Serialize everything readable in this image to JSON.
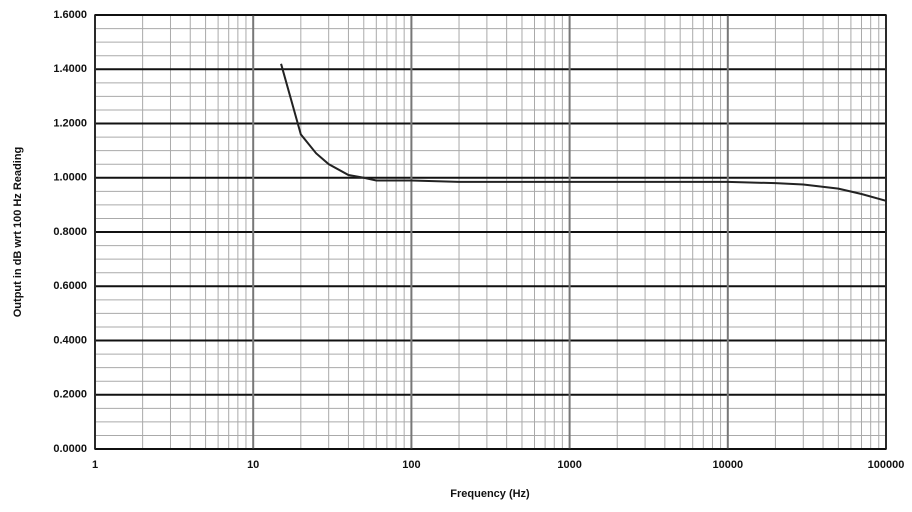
{
  "chart_data": {
    "type": "line",
    "x_label": "Frequency (Hz)",
    "y_label": "Output in dB wrt 100 Hz Reading",
    "x_log": true,
    "grid": true,
    "xlim": [
      1,
      100000
    ],
    "xticks": [
      1,
      10,
      100,
      1000,
      10000,
      100000
    ],
    "ylim": [
      0,
      1.6
    ],
    "yticks": [
      {
        "value": 0,
        "label": "0.0000"
      },
      {
        "value": 0.2,
        "label": "0.2000"
      },
      {
        "value": 0.4,
        "label": "0.4000"
      },
      {
        "value": 0.6,
        "label": "0.6000"
      },
      {
        "value": 0.8,
        "label": "0.8000"
      },
      {
        "value": 1.0,
        "label": "1.0000"
      },
      {
        "value": 1.2,
        "label": "1.2000"
      },
      {
        "value": 1.4,
        "label": "1.4000"
      },
      {
        "value": 1.6,
        "label": "1.6000"
      }
    ],
    "x": [
      15,
      20,
      25,
      30,
      40,
      50,
      60,
      70,
      100,
      200,
      500,
      1000,
      2000,
      5000,
      10000,
      20000,
      30000,
      50000,
      70000,
      100000
    ],
    "series": [
      {
        "color": "#222222",
        "values": [
          1.42,
          1.16,
          1.09,
          1.05,
          1.01,
          1.0,
          0.99,
          0.99,
          0.99,
          0.985,
          0.985,
          0.985,
          0.985,
          0.985,
          0.985,
          0.98,
          0.975,
          0.96,
          0.94,
          0.915
        ]
      }
    ]
  }
}
